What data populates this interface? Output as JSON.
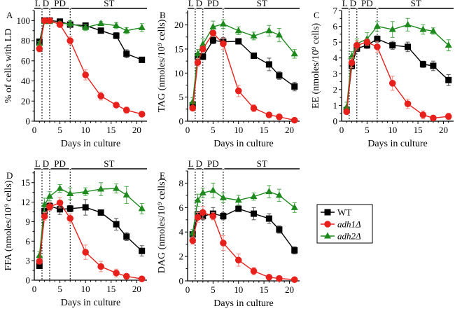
{
  "chart_data": [
    {
      "panel": "A",
      "type": "line",
      "xlabel": "Days in culture",
      "ylabel": "% of cells with LD",
      "xlim": [
        0,
        22
      ],
      "ylim": [
        0,
        110
      ],
      "xticks": [
        0,
        5,
        10,
        15,
        20
      ],
      "yticks": [
        0,
        20,
        40,
        60,
        80,
        100
      ],
      "x": [
        1,
        2,
        3,
        5,
        7,
        10,
        13,
        16,
        18,
        21
      ],
      "series": [
        {
          "name": "WT",
          "values": [
            79,
            100,
            100,
            99,
            96,
            95,
            90,
            85,
            67,
            61
          ],
          "err": [
            2,
            1,
            1,
            1,
            2,
            2,
            1,
            3,
            4,
            2
          ]
        },
        {
          "name": "adh1Δ",
          "values": [
            72,
            100,
            100,
            96,
            80,
            46,
            25,
            16,
            11,
            7
          ],
          "err": [
            3,
            1,
            1,
            2,
            4,
            5,
            4,
            2,
            3,
            2
          ]
        },
        {
          "name": "adh2Δ",
          "values": [
            77,
            99,
            99,
            97,
            97,
            93,
            97,
            95,
            90,
            93
          ],
          "err": [
            2,
            1,
            1,
            2,
            3,
            3,
            2,
            3,
            3,
            4
          ]
        }
      ]
    },
    {
      "panel": "B",
      "type": "line",
      "xlabel": "Days in culture",
      "ylabel": "TAG (nmoles/10⁹ cells)",
      "xlim": [
        0,
        22
      ],
      "ylim": [
        0,
        23
      ],
      "xticks": [
        0,
        5,
        10,
        15,
        20
      ],
      "yticks": [
        0,
        5,
        10,
        15,
        20
      ],
      "x": [
        1,
        2,
        3,
        5,
        7,
        10,
        13,
        16,
        18,
        21
      ],
      "series": [
        {
          "name": "WT",
          "values": [
            3.3,
            13.5,
            13.4,
            16.8,
            16.5,
            16.6,
            13.6,
            11.8,
            9.5,
            7.2
          ],
          "err": [
            0.5,
            0.6,
            0.6,
            0.7,
            0.9,
            0.4,
            0.5,
            1.3,
            0.8,
            0.9
          ]
        },
        {
          "name": "adh1Δ",
          "values": [
            2.7,
            12.2,
            15.0,
            18.3,
            16.1,
            6.3,
            2.7,
            1.3,
            0.9,
            0.2
          ],
          "err": [
            0.4,
            0.8,
            0.6,
            0.6,
            1.2,
            1.2,
            0.7,
            0.4,
            0.2,
            0.1
          ]
        },
        {
          "name": "adh2Δ",
          "values": [
            4.0,
            14.0,
            16.0,
            19.6,
            20.2,
            18.8,
            17.7,
            18.8,
            17.9,
            14.0
          ],
          "err": [
            0.9,
            0.9,
            1.1,
            1.2,
            0.9,
            0.8,
            0.8,
            1.1,
            1.4,
            0.9
          ]
        }
      ]
    },
    {
      "panel": "C",
      "type": "line",
      "xlabel": "Days in culture",
      "ylabel": "EE (nmoles/10⁹ cells)",
      "xlim": [
        0,
        22
      ],
      "ylim": [
        0,
        7
      ],
      "xticks": [
        0,
        5,
        10,
        15,
        20
      ],
      "yticks": [
        0,
        1,
        2,
        3,
        4,
        5,
        6,
        7
      ],
      "x": [
        1,
        2,
        3,
        5,
        7,
        10,
        13,
        16,
        18,
        21
      ],
      "series": [
        {
          "name": "WT",
          "values": [
            0.7,
            3.5,
            4.6,
            4.8,
            5.2,
            4.8,
            4.7,
            3.6,
            3.5,
            2.6
          ],
          "err": [
            0.15,
            0.2,
            0.2,
            0.2,
            0.2,
            0.25,
            0.3,
            0.2,
            0.3,
            0.35
          ]
        },
        {
          "name": "adh1Δ",
          "values": [
            0.6,
            3.7,
            4.8,
            5.0,
            4.7,
            2.4,
            1.1,
            0.4,
            0.2,
            0.3
          ],
          "err": [
            0.15,
            0.3,
            0.3,
            0.2,
            0.35,
            0.45,
            0.3,
            0.25,
            0.1,
            0.2
          ]
        },
        {
          "name": "adh2Δ",
          "values": [
            0.9,
            4.1,
            4.9,
            5.2,
            6.0,
            5.8,
            6.1,
            5.8,
            5.7,
            4.8
          ],
          "err": [
            0.3,
            0.3,
            0.3,
            0.4,
            0.3,
            0.5,
            0.4,
            0.3,
            0.2,
            0.35
          ]
        }
      ]
    },
    {
      "panel": "D",
      "type": "line",
      "xlabel": "Days in culture",
      "ylabel": "FFA (nmoles/10⁹ cells)",
      "xlim": [
        0,
        22
      ],
      "ylim": [
        0,
        16.8
      ],
      "xticks": [
        0,
        5,
        10,
        15,
        20
      ],
      "yticks": [
        0,
        3,
        6,
        9,
        12,
        15
      ],
      "x": [
        1,
        2,
        3,
        5,
        7,
        10,
        13,
        16,
        18,
        21
      ],
      "series": [
        {
          "name": "WT",
          "values": [
            2.2,
            10.6,
            11.4,
            10.9,
            11.0,
            11.2,
            10.4,
            8.6,
            6.7,
            4.5
          ],
          "err": [
            0.2,
            0.6,
            0.6,
            0.8,
            0.5,
            1.2,
            0.2,
            0.9,
            0.6,
            0.8
          ]
        },
        {
          "name": "adh1Δ",
          "values": [
            2.9,
            9.8,
            11.3,
            11.9,
            9.5,
            4.3,
            2.1,
            1.1,
            0.6,
            0.2
          ],
          "err": [
            0.4,
            0.6,
            0.6,
            0.8,
            0.7,
            1.1,
            0.8,
            0.6,
            0.2,
            0.1
          ]
        },
        {
          "name": "adh2Δ",
          "values": [
            3.8,
            11.6,
            12.9,
            14.1,
            13.3,
            13.6,
            14.0,
            14.1,
            13.1,
            11.0
          ],
          "err": [
            0.6,
            1.0,
            0.7,
            0.6,
            0.9,
            0.6,
            1.0,
            0.7,
            1.3,
            0.8
          ]
        }
      ]
    },
    {
      "panel": "E",
      "type": "line",
      "xlabel": "Days in culture",
      "ylabel": "DAG (nmoles/10⁹ cells)",
      "xlim": [
        0,
        22
      ],
      "ylim": [
        0,
        9
      ],
      "xticks": [
        0,
        5,
        10,
        15,
        20
      ],
      "yticks": [
        0,
        2,
        4,
        6,
        8
      ],
      "x": [
        1,
        2,
        3,
        5,
        7,
        10,
        13,
        16,
        18,
        21
      ],
      "series": [
        {
          "name": "WT",
          "values": [
            3.8,
            5.4,
            5.3,
            5.5,
            5.3,
            5.9,
            5.5,
            5.1,
            4.2,
            2.5
          ],
          "err": [
            0.2,
            0.3,
            0.3,
            0.5,
            0.3,
            0.2,
            0.5,
            0.4,
            0.3,
            0.3
          ]
        },
        {
          "name": "adh1Δ",
          "values": [
            3.3,
            5.2,
            5.6,
            5.3,
            3.1,
            1.7,
            0.8,
            0.3,
            0.2,
            0.1
          ],
          "err": [
            0.3,
            0.4,
            0.5,
            0.3,
            0.6,
            0.5,
            0.3,
            0.1,
            0.1,
            0.1
          ]
        },
        {
          "name": "adh2Δ",
          "values": [
            3.9,
            6.6,
            7.2,
            7.4,
            6.8,
            6.6,
            6.9,
            7.3,
            7.0,
            6.0
          ],
          "err": [
            0.3,
            0.5,
            0.4,
            0.6,
            0.4,
            0.4,
            0.3,
            0.5,
            0.5,
            0.4
          ]
        }
      ]
    }
  ],
  "phases": {
    "labels": [
      "L",
      "D",
      "PD",
      "ST"
    ],
    "boundaries_days": [
      1.5,
      3,
      7
    ]
  },
  "legend": {
    "placement": "right of lower row",
    "entries": [
      {
        "label": "WT",
        "color": "#000000",
        "marker": "square"
      },
      {
        "label": "adh1Δ",
        "color": "#e8201c",
        "marker": "circle"
      },
      {
        "label": "adh2Δ",
        "color": "#1e8a1e",
        "marker": "triangle"
      }
    ]
  },
  "colors": {
    "WT": "#000000",
    "adh1Δ": "#e8201c",
    "adh2Δ": "#1e8a1e",
    "errWT": "#555555",
    "errAdh1": "#f08a80",
    "errAdh2": "#4fa84f"
  }
}
